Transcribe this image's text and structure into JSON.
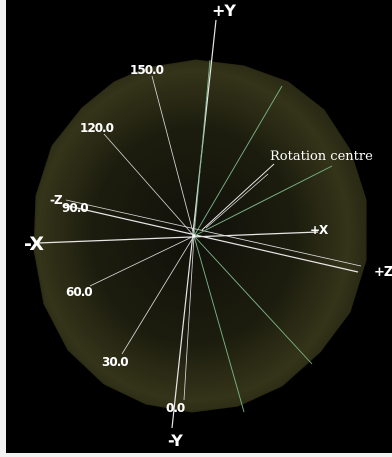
{
  "axis_labels": {
    "plus_y": "+Y",
    "minus_y": "-Y",
    "minus_x": "-X",
    "plus_x": "+X",
    "minus_z": "-Z",
    "plus_z": "+Z"
  },
  "angle_labels": [
    "0.0",
    "30.0",
    "60.0",
    "90.0",
    "120.0",
    "150.0"
  ],
  "annotation": "Rotation centre",
  "colors": {
    "background": "#000000",
    "sphere_rim": "#4a4a18",
    "sphere_core": "#16160a",
    "axis_line": "#e6e6e6",
    "meridian_green": "#7ab487",
    "label": "#ffffff"
  }
}
